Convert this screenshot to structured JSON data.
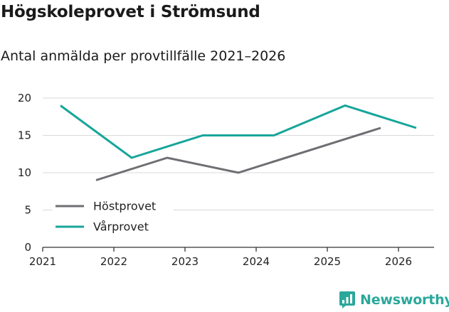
{
  "header": {
    "title": "Högskoleprovet i Strömsund",
    "subtitle": "Antal anmälda per provtillfälle 2021–2026"
  },
  "brand": {
    "name": "Newsworthy",
    "color": "#2aa89a"
  },
  "chart_data": {
    "type": "line",
    "title": "Högskoleprovet i Strömsund",
    "subtitle": "Antal anmälda per provtillfälle 2021–2026",
    "xlabel": "",
    "ylabel": "",
    "xlim": [
      2021,
      2026.5
    ],
    "ylim": [
      0,
      20
    ],
    "x_ticks": [
      2021,
      2022,
      2023,
      2024,
      2025,
      2026
    ],
    "x_tick_labels": [
      "2021",
      "2022",
      "2023",
      "2024",
      "2025",
      "2026"
    ],
    "y_ticks": [
      0,
      5,
      10,
      15,
      20
    ],
    "y_tick_labels": [
      "0",
      "5",
      "10",
      "15",
      "20"
    ],
    "grid": true,
    "legend_position": "bottom-left",
    "series": [
      {
        "name": "Höstprovet",
        "color": "#6e6e73",
        "x": [
          2021.75,
          2022.75,
          2023.75,
          2025.75
        ],
        "values": [
          9,
          12,
          10,
          16
        ]
      },
      {
        "name": "Vårprovet",
        "color": "#17a59a",
        "x": [
          2021.25,
          2022.25,
          2023.25,
          2024.25,
          2025.25,
          2026.25
        ],
        "values": [
          19,
          12,
          15,
          15,
          19,
          16
        ]
      }
    ]
  }
}
